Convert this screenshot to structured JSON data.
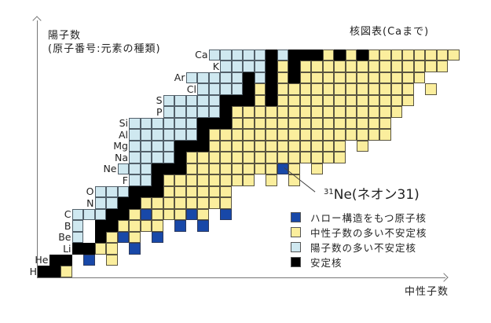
{
  "title": "核図表(Caまで)",
  "axes": {
    "y_label_line1": "陽子数",
    "y_label_line2": "(原子番号:元素の種類)",
    "x_label": "中性子数"
  },
  "annotation": {
    "mass": "31",
    "text": "Ne(ネオン31)",
    "target": {
      "Z": 10,
      "N": 21
    }
  },
  "legend": [
    {
      "key": "H",
      "label": "ハロー構造をもつ原子核",
      "color": "#1848a8"
    },
    {
      "key": "Y",
      "label": "中性子数の多い不安定核",
      "color": "#fbee9d"
    },
    {
      "key": "P",
      "label": "陽子数の多い不安定核",
      "color": "#cfe8f0"
    },
    {
      "key": "S",
      "label": "安定核",
      "color": "#000000"
    }
  ],
  "colors": {
    "stable": "#000000",
    "neutron_rich": "#fbee9d",
    "proton_rich": "#cfe8f0",
    "halo": "#1848a8"
  },
  "chart_data": {
    "type": "heatmap",
    "title": "核図表(Caまで)",
    "xlabel": "中性子数",
    "ylabel": "陽子数(原子番号:元素の種類)",
    "categories_key": {
      "S": "安定核",
      "Y": "中性子数の多い不安定核",
      "P": "陽子数の多い不安定核",
      "H": "ハロー構造をもつ原子核"
    },
    "rows": [
      {
        "Z": 1,
        "element": "H",
        "cells": [
          [
            0,
            "S"
          ],
          [
            1,
            "S"
          ],
          [
            2,
            "Y"
          ]
        ]
      },
      {
        "Z": 2,
        "element": "He",
        "cells": [
          [
            1,
            "S"
          ],
          [
            2,
            "S"
          ],
          [
            4,
            "H"
          ],
          [
            6,
            "Y"
          ]
        ]
      },
      {
        "Z": 3,
        "element": "Li",
        "cells": [
          [
            3,
            "S"
          ],
          [
            4,
            "S"
          ],
          [
            5,
            "Y"
          ],
          [
            6,
            "Y"
          ],
          [
            8,
            "H"
          ]
        ]
      },
      {
        "Z": 4,
        "element": "Be",
        "cells": [
          [
            3,
            "P"
          ],
          [
            5,
            "S"
          ],
          [
            6,
            "Y"
          ],
          [
            7,
            "H"
          ],
          [
            8,
            "Y"
          ],
          [
            10,
            "H"
          ]
        ]
      },
      {
        "Z": 5,
        "element": "B",
        "cells": [
          [
            3,
            "P"
          ],
          [
            5,
            "S"
          ],
          [
            6,
            "S"
          ],
          [
            7,
            "Y"
          ],
          [
            8,
            "Y"
          ],
          [
            9,
            "Y"
          ],
          [
            10,
            "Y"
          ],
          [
            12,
            "H"
          ],
          [
            14,
            "H"
          ]
        ]
      },
      {
        "Z": 6,
        "element": "C",
        "cells": [
          [
            3,
            "P"
          ],
          [
            4,
            "P"
          ],
          [
            5,
            "P"
          ],
          [
            6,
            "S"
          ],
          [
            7,
            "S"
          ],
          [
            8,
            "Y"
          ],
          [
            9,
            "H"
          ],
          [
            10,
            "Y"
          ],
          [
            11,
            "Y"
          ],
          [
            12,
            "Y"
          ],
          [
            13,
            "H"
          ],
          [
            14,
            "Y"
          ],
          [
            16,
            "H"
          ]
        ]
      },
      {
        "Z": 7,
        "element": "N",
        "ranges": [
          [
            5,
            6,
            "P"
          ],
          [
            7,
            8,
            "S"
          ],
          [
            9,
            16,
            "Y"
          ]
        ]
      },
      {
        "Z": 8,
        "element": "O",
        "ranges": [
          [
            5,
            7,
            "P"
          ],
          [
            8,
            10,
            "S"
          ],
          [
            11,
            16,
            "Y"
          ]
        ]
      },
      {
        "Z": 9,
        "element": "F",
        "ranges": [
          [
            8,
            9,
            "P"
          ],
          [
            10,
            10,
            "S"
          ],
          [
            11,
            18,
            "Y"
          ],
          [
            20,
            20,
            "Y"
          ],
          [
            22,
            22,
            "Y"
          ]
        ]
      },
      {
        "Z": 10,
        "element": "Ne",
        "ranges": [
          [
            7,
            9,
            "P"
          ],
          [
            10,
            12,
            "S"
          ],
          [
            13,
            20,
            "Y"
          ],
          [
            21,
            21,
            "H"
          ],
          [
            22,
            22,
            "Y"
          ],
          [
            24,
            24,
            "Y"
          ]
        ]
      },
      {
        "Z": 11,
        "element": "Na",
        "ranges": [
          [
            8,
            11,
            "P"
          ],
          [
            12,
            12,
            "S"
          ],
          [
            13,
            26,
            "Y"
          ]
        ]
      },
      {
        "Z": 12,
        "element": "Mg",
        "ranges": [
          [
            8,
            11,
            "P"
          ],
          [
            12,
            14,
            "S"
          ],
          [
            15,
            26,
            "Y"
          ],
          [
            28,
            28,
            "Y"
          ]
        ]
      },
      {
        "Z": 13,
        "element": "Al",
        "ranges": [
          [
            8,
            13,
            "P"
          ],
          [
            14,
            14,
            "S"
          ],
          [
            15,
            30,
            "Y"
          ]
        ]
      },
      {
        "Z": 14,
        "element": "Si",
        "ranges": [
          [
            8,
            13,
            "P"
          ],
          [
            14,
            16,
            "S"
          ],
          [
            17,
            30,
            "Y"
          ]
        ]
      },
      {
        "Z": 15,
        "element": "P",
        "ranges": [
          [
            11,
            15,
            "P"
          ],
          [
            16,
            16,
            "S"
          ],
          [
            17,
            31,
            "Y"
          ]
        ]
      },
      {
        "Z": 16,
        "element": "S",
        "ranges": [
          [
            11,
            15,
            "P"
          ],
          [
            16,
            18,
            "S"
          ],
          [
            19,
            19,
            "Y"
          ],
          [
            20,
            20,
            "S"
          ],
          [
            21,
            32,
            "Y"
          ]
        ]
      },
      {
        "Z": 17,
        "element": "Cl",
        "ranges": [
          [
            14,
            17,
            "P"
          ],
          [
            18,
            18,
            "S"
          ],
          [
            19,
            19,
            "Y"
          ],
          [
            20,
            20,
            "S"
          ],
          [
            21,
            32,
            "Y"
          ],
          [
            34,
            34,
            "Y"
          ]
        ]
      },
      {
        "Z": 18,
        "element": "Ar",
        "ranges": [
          [
            13,
            17,
            "P"
          ],
          [
            18,
            18,
            "S"
          ],
          [
            19,
            19,
            "P"
          ],
          [
            20,
            20,
            "S"
          ],
          [
            21,
            21,
            "Y"
          ],
          [
            22,
            22,
            "S"
          ],
          [
            23,
            33,
            "Y"
          ]
        ]
      },
      {
        "Z": 19,
        "element": "K",
        "ranges": [
          [
            16,
            19,
            "P"
          ],
          [
            20,
            20,
            "S"
          ],
          [
            21,
            21,
            "Y"
          ],
          [
            22,
            22,
            "S"
          ],
          [
            23,
            35,
            "Y"
          ]
        ]
      },
      {
        "Z": 20,
        "element": "Ca",
        "ranges": [
          [
            15,
            19,
            "P"
          ],
          [
            20,
            20,
            "S"
          ],
          [
            21,
            21,
            "P"
          ],
          [
            22,
            24,
            "S"
          ],
          [
            25,
            25,
            "Y"
          ],
          [
            26,
            26,
            "S"
          ],
          [
            27,
            27,
            "Y"
          ],
          [
            28,
            28,
            "S"
          ],
          [
            29,
            36,
            "Y"
          ]
        ]
      }
    ],
    "grid": false,
    "legend_position": "lower right"
  },
  "element_labels": [
    {
      "Z": 1,
      "symbol": "H",
      "N_first": 0
    },
    {
      "Z": 2,
      "symbol": "He",
      "N_first": 1
    },
    {
      "Z": 3,
      "symbol": "Li",
      "N_first": 3
    },
    {
      "Z": 4,
      "symbol": "Be",
      "N_first": 3
    },
    {
      "Z": 5,
      "symbol": "B",
      "N_first": 3
    },
    {
      "Z": 6,
      "symbol": "C",
      "N_first": 3
    },
    {
      "Z": 7,
      "symbol": "N",
      "N_first": 5
    },
    {
      "Z": 8,
      "symbol": "O",
      "N_first": 5
    },
    {
      "Z": 9,
      "symbol": "F",
      "N_first": 8
    },
    {
      "Z": 10,
      "symbol": "Ne",
      "N_first": 7
    },
    {
      "Z": 11,
      "symbol": "Na",
      "N_first": 8
    },
    {
      "Z": 12,
      "symbol": "Mg",
      "N_first": 8
    },
    {
      "Z": 13,
      "symbol": "Al",
      "N_first": 8
    },
    {
      "Z": 14,
      "symbol": "Si",
      "N_first": 8
    },
    {
      "Z": 15,
      "symbol": "P",
      "N_first": 11
    },
    {
      "Z": 16,
      "symbol": "S",
      "N_first": 11
    },
    {
      "Z": 17,
      "symbol": "Cl",
      "N_first": 14
    },
    {
      "Z": 18,
      "symbol": "Ar",
      "N_first": 13
    },
    {
      "Z": 19,
      "symbol": "K",
      "N_first": 16
    },
    {
      "Z": 20,
      "symbol": "Ca",
      "N_first": 15
    }
  ]
}
